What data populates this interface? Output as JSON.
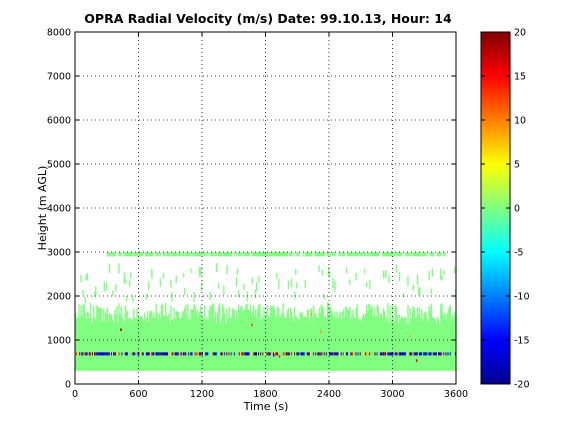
{
  "chart_data": {
    "type": "heatmap",
    "title": "OPRA Radial Velocity (m/s)  Date: 99.10.13, Hour: 14",
    "xlabel": "Time (s)",
    "ylabel": "Height (m AGL)",
    "xlim": [
      0,
      3600
    ],
    "ylim": [
      0,
      8000
    ],
    "xticks": [
      "0",
      "600",
      "1200",
      "1800",
      "2400",
      "3000",
      "3600"
    ],
    "yticks": [
      "0",
      "1000",
      "2000",
      "3000",
      "4000",
      "5000",
      "6000",
      "7000",
      "8000"
    ],
    "grid": true,
    "colormap": "jet",
    "colorbar": {
      "range": [
        -20,
        20
      ],
      "ticks": [
        "-20",
        "-15",
        "-10",
        "-5",
        "0",
        "5",
        "10",
        "15",
        "20"
      ]
    },
    "features": {
      "background_velocity": 0,
      "lower_band": {
        "height_from": 300,
        "height_to": 1450,
        "velocity": 0
      },
      "patchy_layer": {
        "height_from": 1450,
        "height_to": 1850,
        "velocity": 0
      },
      "sparse_echoes": {
        "height_from": 1850,
        "height_to": 2700,
        "velocity": 0
      },
      "top_gate": {
        "height_from": 2900,
        "height_to": 3000,
        "velocity": 0
      },
      "strong_echo_layer": {
        "height_from": 650,
        "height_to": 720,
        "velocity_range": [
          -20,
          20
        ]
      }
    }
  }
}
